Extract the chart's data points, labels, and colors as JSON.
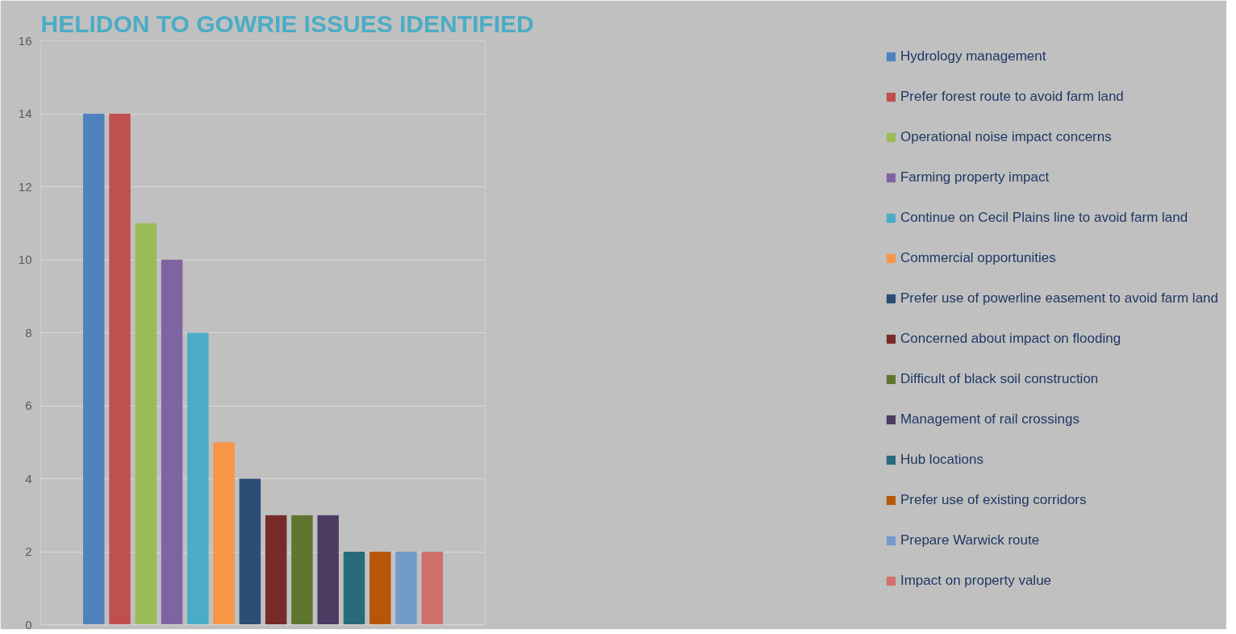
{
  "chart_data": {
    "type": "bar",
    "title": "HELIDON TO GOWRIE ISSUES IDENTIFIED",
    "categories": [
      null
    ],
    "series": [
      {
        "name": "Hydrology management",
        "color": "#4f81bd",
        "values": [
          14
        ]
      },
      {
        "name": "Prefer forest route to avoid farm land",
        "color": "#c0504d",
        "values": [
          14
        ]
      },
      {
        "name": "Operational noise impact concerns",
        "color": "#9bbb59",
        "values": [
          11
        ]
      },
      {
        "name": "Farming property impact",
        "color": "#8064a2",
        "values": [
          10
        ]
      },
      {
        "name": "Continue on Cecil Plains line to avoid farm land",
        "color": "#4bacc6",
        "values": [
          8
        ]
      },
      {
        "name": "Commercial opportunities",
        "color": "#f79646",
        "values": [
          5
        ]
      },
      {
        "name": "Prefer use of powerline easement to avoid farm land",
        "color": "#2c4d75",
        "values": [
          4
        ]
      },
      {
        "name": "Concerned about impact on flooding",
        "color": "#772c2a",
        "values": [
          3
        ]
      },
      {
        "name": "Difficult of black soil construction",
        "color": "#5f7530",
        "values": [
          3
        ]
      },
      {
        "name": "Management of rail crossings",
        "color": "#4d3b62",
        "values": [
          3
        ]
      },
      {
        "name": "Hub locations",
        "color": "#276a7c",
        "values": [
          2
        ]
      },
      {
        "name": "Prefer use of existing corridors",
        "color": "#b65708",
        "values": [
          2
        ]
      },
      {
        "name": "Prepare Warwick route",
        "color": "#729aca",
        "values": [
          2
        ]
      },
      {
        "name": "Impact on property value",
        "color": "#d0706d",
        "values": [
          2
        ]
      }
    ],
    "ylim": [
      0,
      16
    ],
    "yticks": [
      0,
      2,
      4,
      6,
      8,
      10,
      12,
      14,
      16
    ],
    "grid": "y",
    "legend": "right",
    "tick_labels": "y"
  }
}
